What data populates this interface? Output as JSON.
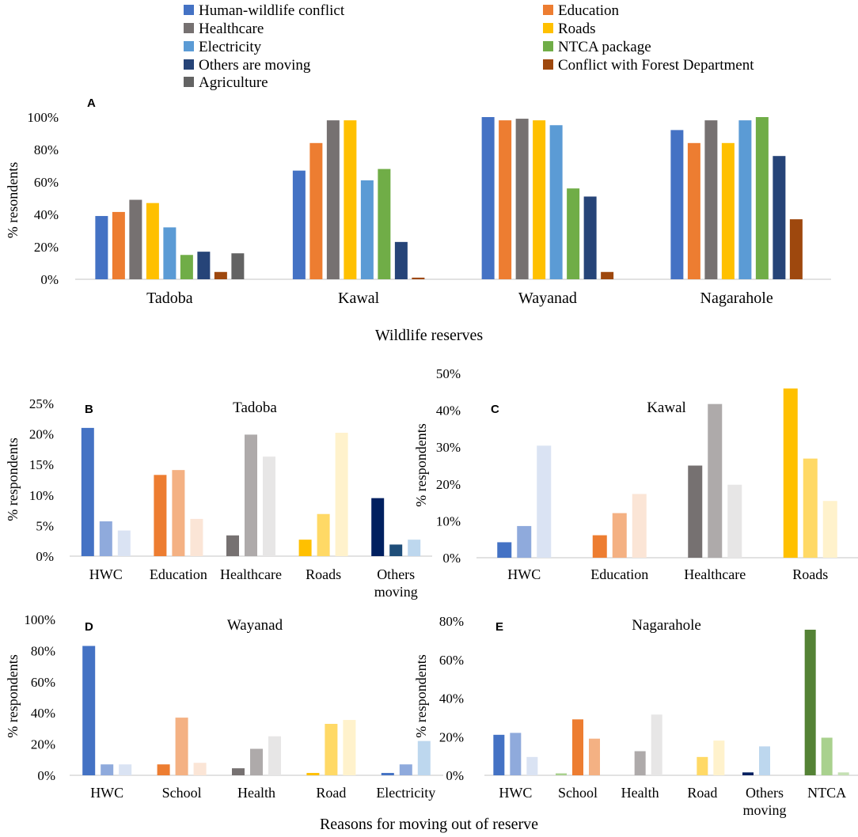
{
  "chart_data": [
    {
      "id": "A",
      "panel_label": "A",
      "type": "bar",
      "title": "",
      "xlabel": "Wildlife reserves",
      "ylabel": "% resondents",
      "ylim": [
        0,
        100
      ],
      "yticks": [
        "0%",
        "20%",
        "40%",
        "60%",
        "80%",
        "100%"
      ],
      "categories": [
        "Tadoba",
        "Kawal",
        "Wayanad",
        "Nagarahole"
      ],
      "legend": {
        "placement": "top"
      },
      "series": [
        {
          "name": "Human-wildlife conflict",
          "color": "#4472C4",
          "values": [
            39,
            67,
            100,
            92
          ]
        },
        {
          "name": "Education",
          "color": "#ED7D31",
          "values": [
            41.5,
            84,
            98,
            84
          ]
        },
        {
          "name": "Healthcare",
          "color": "#767171",
          "values": [
            49,
            98,
            99,
            98
          ]
        },
        {
          "name": "Roads",
          "color": "#FFC000",
          "values": [
            47,
            98,
            98,
            84
          ]
        },
        {
          "name": "Electricity",
          "color": "#5B9BD5",
          "values": [
            32,
            61,
            95,
            98
          ]
        },
        {
          "name": "NTCA package",
          "color": "#70AD47",
          "values": [
            15,
            68,
            56,
            100
          ]
        },
        {
          "name": "Others are moving",
          "color": "#264478",
          "values": [
            17,
            23,
            51,
            76
          ]
        },
        {
          "name": "Conflict with Forest Department",
          "color": "#9E480E",
          "values": [
            4.5,
            1,
            4.5,
            37
          ]
        },
        {
          "name": "Agriculture",
          "color": "#636363",
          "values": [
            16,
            null,
            null,
            null
          ]
        }
      ]
    },
    {
      "id": "B",
      "panel_label": "B",
      "type": "bar",
      "title": "Tadoba",
      "ylabel": "% respondents",
      "ylim": [
        0,
        25
      ],
      "yticks": [
        "0%",
        "5%",
        "10%",
        "15%",
        "20%",
        "25%"
      ],
      "categories": [
        "HWC",
        "Education",
        "Healthcare",
        "Roads",
        "Others moving"
      ],
      "category_colors": [
        [
          "#4472C4",
          "#8FAADC",
          "#DAE3F3"
        ],
        [
          "#ED7D31",
          "#F4B183",
          "#FBE5D6"
        ],
        [
          "#767171",
          "#AEAAAA",
          "#E7E6E6"
        ],
        [
          "#FFC000",
          "#FFD966",
          "#FFF2CC"
        ],
        [
          "#002060",
          "#1F4E79",
          "#BDD7EE"
        ]
      ],
      "values": [
        [
          21,
          5.7,
          4.2
        ],
        [
          13.3,
          14.1,
          6.1
        ],
        [
          3.4,
          19.9,
          16.3
        ],
        [
          2.7,
          6.9,
          20.2
        ],
        [
          9.5,
          1.9,
          2.7
        ]
      ]
    },
    {
      "id": "C",
      "panel_label": "C",
      "type": "bar",
      "title": "Kawal",
      "ylabel": "% respondents",
      "ylim": [
        0,
        50
      ],
      "yticks": [
        "0%",
        "10%",
        "20%",
        "30%",
        "40%",
        "50%"
      ],
      "categories": [
        "HWC",
        "Education",
        "Healthcare",
        "Roads"
      ],
      "category_colors": [
        [
          "#4472C4",
          "#8FAADC",
          "#DAE3F3"
        ],
        [
          "#ED7D31",
          "#F4B183",
          "#FBE5D6"
        ],
        [
          "#767171",
          "#AEAAAA",
          "#E7E6E6"
        ],
        [
          "#FFC000",
          "#FFD966",
          "#FFF2CC"
        ]
      ],
      "values": [
        [
          4.2,
          8.6,
          30.4
        ],
        [
          6.1,
          12.1,
          17.3
        ],
        [
          25,
          41.7,
          19.8
        ],
        [
          45.9,
          26.9,
          15.4
        ]
      ]
    },
    {
      "id": "D",
      "panel_label": "D",
      "type": "bar",
      "title": "Wayanad",
      "ylabel": "% respondents",
      "ylim": [
        0,
        100
      ],
      "yticks": [
        "0%",
        "20%",
        "40%",
        "60%",
        "80%",
        "100%"
      ],
      "categories": [
        "HWC",
        "School",
        "Health",
        "Road",
        "Electricity"
      ],
      "category_colors": [
        [
          "#4472C4",
          "#8FAADC",
          "#DAE3F3"
        ],
        [
          "#ED7D31",
          "#F4B183",
          "#FBE5D6"
        ],
        [
          "#767171",
          "#AEAAAA",
          "#E7E6E6"
        ],
        [
          "#FFC000",
          "#FFD966",
          "#FFF2CC"
        ],
        [
          "#4472C4",
          "#8FAADC",
          "#BDD7EE"
        ]
      ],
      "values": [
        [
          83,
          7,
          7
        ],
        [
          7,
          37,
          8
        ],
        [
          4.5,
          17,
          25
        ],
        [
          1.5,
          33,
          35.5
        ],
        [
          1.5,
          7,
          22
        ]
      ]
    },
    {
      "id": "E",
      "panel_label": "E",
      "type": "bar",
      "title": "Nagarahole",
      "ylabel": "% respondents",
      "ylim": [
        0,
        80
      ],
      "yticks": [
        "0%",
        "20%",
        "40%",
        "60%",
        "80%"
      ],
      "categories": [
        "HWC",
        "School",
        "Health",
        "Road",
        "Others moving",
        "NTCA"
      ],
      "category_colors": [
        [
          "#4472C4",
          "#8FAADC",
          "#DAE3F3"
        ],
        [
          "#A9D18E",
          "#ED7D31",
          "#F4B183"
        ],
        [
          "#767171",
          "#AEAAAA",
          "#E7E6E6"
        ],
        [
          "#FFC000",
          "#FFD966",
          "#FFF2CC"
        ],
        [
          "#002060",
          "#BDD7EE",
          "#DEEBF7"
        ],
        [
          "#548235",
          "#A9D18E",
          "#C5E0B4"
        ]
      ],
      "values": [
        [
          21,
          22,
          9.5
        ],
        [
          1,
          29,
          19
        ],
        [
          0,
          12.5,
          31.5
        ],
        [
          0,
          9.5,
          18
        ],
        [
          1.5,
          15,
          0
        ],
        [
          75.5,
          19.5,
          1.5
        ]
      ]
    }
  ],
  "shared_xlabel": "Reasons for moving out of reserve"
}
